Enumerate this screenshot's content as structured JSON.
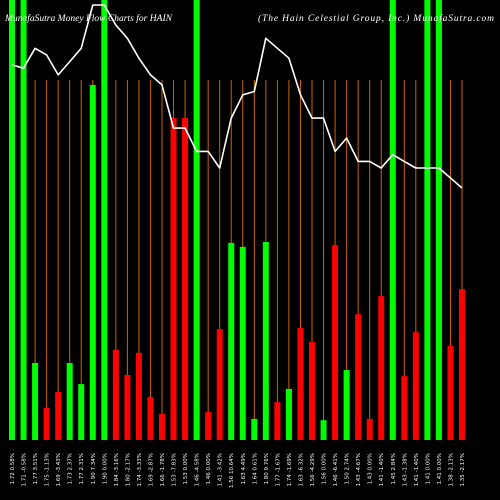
{
  "header": {
    "title": "MunafaSutra Money Flow Charts for HAIN",
    "subtitle": "(The Hain Celestial Group, Inc.) MunafaSutra.com"
  },
  "colors": {
    "background": "#000000",
    "up": "#00ff00",
    "down": "#ff0000",
    "guide": "#cc6600",
    "line": "#ffffff",
    "text": "#ffffff"
  },
  "chart_data": {
    "type": "bar",
    "categories": [
      "1.72 0.58%",
      "1.71 -0.58%",
      "1.77 3.51%",
      "1.75 -1.13%",
      "1.69 -3.43%",
      "1.73 2.37%",
      "1.77 2.31%",
      "1.90 7.34%",
      "1.90 0.00%",
      "1.84 -3.16%",
      "1.80 -2.17%",
      "1.74 -3.33%",
      "1.69 -2.87%",
      "1.66 -1.78%",
      "1.53 -7.83%",
      "1.53 0.00%",
      "1.46 -4.58%",
      "1.46 0.00%",
      "1.41 -3.42%",
      "1.56 10.64%",
      "1.63 4.49%",
      "1.64 0.61%",
      "1.80 9.76%",
      "1.77 -1.67%",
      "1.74 -1.69%",
      "1.63 -6.32%",
      "1.56 -4.29%",
      "1.56 0.00%",
      "1.46 -6.41%",
      "1.50 2.74%",
      "1.43 -4.67%",
      "1.43 0.00%",
      "1.41 -1.40%",
      "1.45 2.84%",
      "1.43 -1.38%",
      "1.41 -1.40%",
      "1.41 0.00%",
      "1.41 0.00%",
      "1.38 -2.13%",
      "1.35 -2.17%"
    ],
    "series": [
      {
        "type": "bar",
        "values": [
          100,
          100,
          17.5,
          7.3,
          10.9,
          17.5,
          12.7,
          80.7,
          100,
          20.5,
          14.8,
          19.8,
          9.8,
          5.9,
          73.2,
          73.2,
          100,
          6.4,
          25.2,
          44.8,
          43.9,
          4.8,
          45.0,
          8.6,
          11.6,
          25.5,
          22.3,
          4.5,
          44.3,
          15.9,
          28.6,
          4.8,
          32.7,
          100,
          14.5,
          24.5,
          100,
          100,
          21.4,
          34.3
        ],
        "direction": [
          "up",
          "up",
          "up",
          "down",
          "down",
          "up",
          "up",
          "up",
          "up",
          "down",
          "down",
          "down",
          "down",
          "down",
          "down",
          "down",
          "up",
          "down",
          "down",
          "up",
          "up",
          "up",
          "up",
          "down",
          "up",
          "down",
          "down",
          "up",
          "down",
          "up",
          "down",
          "down",
          "down",
          "up",
          "down",
          "down",
          "up",
          "up",
          "down",
          "down"
        ]
      },
      {
        "type": "line",
        "values": [
          1.72,
          1.71,
          1.77,
          1.75,
          1.69,
          1.73,
          1.77,
          1.9,
          1.9,
          1.84,
          1.8,
          1.74,
          1.69,
          1.66,
          1.53,
          1.53,
          1.46,
          1.46,
          1.41,
          1.56,
          1.63,
          1.64,
          1.8,
          1.77,
          1.74,
          1.63,
          1.56,
          1.56,
          1.46,
          1.5,
          1.43,
          1.43,
          1.41,
          1.45,
          1.43,
          1.41,
          1.41,
          1.41,
          1.38,
          1.35
        ]
      }
    ],
    "ylim": [
      0,
      100
    ],
    "xlabel": "",
    "ylabel": "",
    "legend": "none",
    "grid": false
  }
}
